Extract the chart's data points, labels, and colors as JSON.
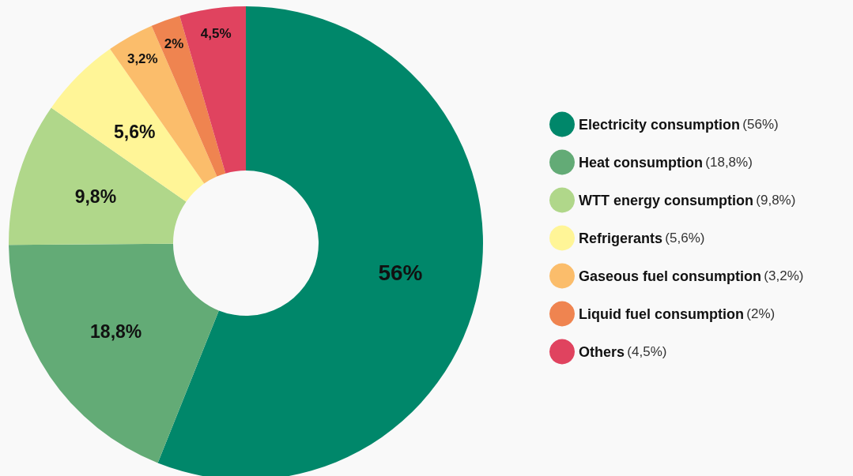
{
  "chart_data": {
    "type": "donut",
    "categories": [
      "Electricity consumption (56%)",
      "Heat consumption (18,8%)",
      "WTT energy consumption (9,8%)",
      "Refrigerants (5,6%)",
      "Gaseous fuel consumption (3,2%)",
      "Liquid fuel consumption (2%)",
      "Others (4,5%)"
    ],
    "values": [
      56,
      18.8,
      9.8,
      5.6,
      3.2,
      2,
      4.5
    ],
    "colors": [
      "#00876a",
      "#63ab76",
      "#b0d78a",
      "#fff597",
      "#fbbd6b",
      "#ef8450",
      "#e0435f"
    ],
    "value_labels": [
      "56%",
      "18,8%",
      "9,8%",
      "5,6%",
      "3,2%",
      "2%",
      "4,5%"
    ],
    "legend": "right"
  }
}
